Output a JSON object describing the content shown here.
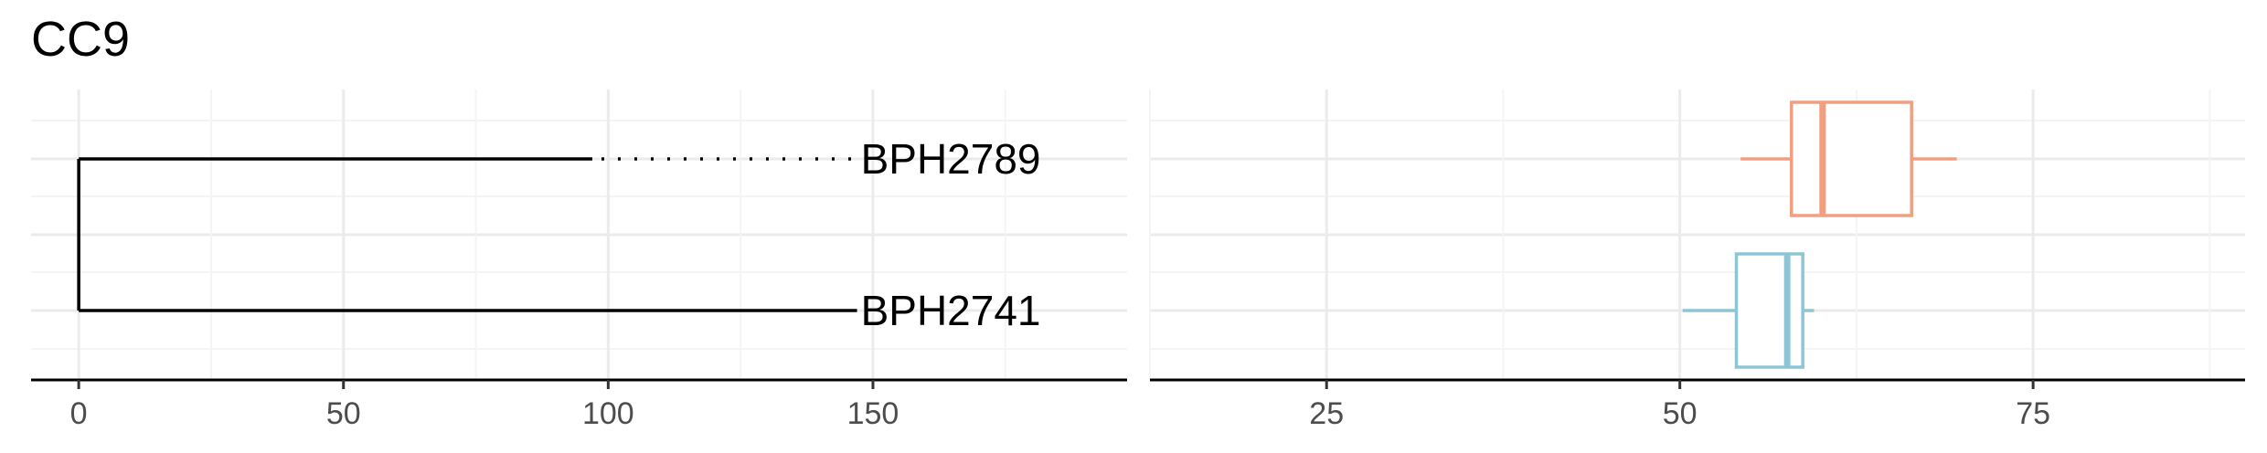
{
  "title": "CC9",
  "chart_data": [
    {
      "type": "tree",
      "title": "CC9",
      "xlabel": "",
      "ylabel": "",
      "xlim": [
        -9,
        198
      ],
      "x_ticks": [
        0,
        50,
        100,
        150
      ],
      "grid": true,
      "edge_color": "#000000",
      "tips": [
        {
          "name": "BPH2789",
          "branch_end": 97,
          "label_x": 147,
          "dotted_extension": true
        },
        {
          "name": "BPH2741",
          "branch_end": 147,
          "label_x": 147,
          "dotted_extension": false
        }
      ],
      "root_x": 0
    },
    {
      "type": "boxplot",
      "xlabel": "",
      "ylabel": "",
      "xlim": [
        12.5,
        90
      ],
      "x_ticks": [
        25,
        50,
        75
      ],
      "grid": true,
      "boxes": [
        {
          "category": "BPH2789",
          "color": "#f0a080",
          "whisker_low": 54.3,
          "q1": 57.9,
          "median": 60.1,
          "q3": 66.4,
          "whisker_high": 69.6
        },
        {
          "category": "BPH2741",
          "color": "#8ec5d6",
          "whisker_low": 50.2,
          "q1": 54.0,
          "median": 57.6,
          "q3": 58.7,
          "whisker_high": 59.5
        }
      ]
    }
  ]
}
